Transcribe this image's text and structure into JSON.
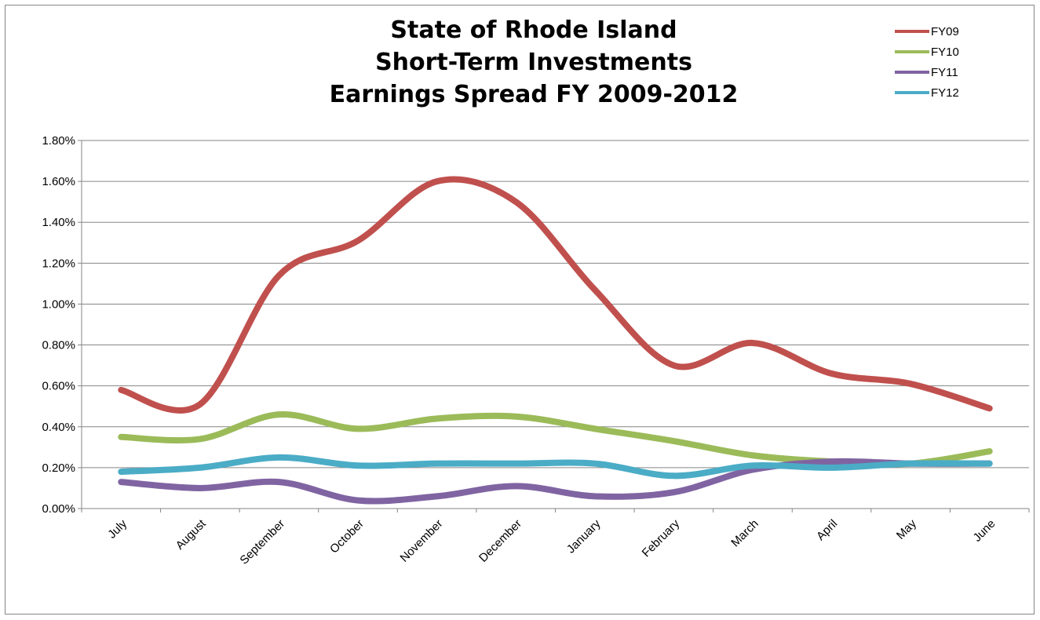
{
  "chart_data": {
    "type": "line",
    "title_lines": [
      "State of Rhode Island",
      "Short-Term Investments",
      "Earnings Spread FY 2009-2012"
    ],
    "categories": [
      "July",
      "August",
      "September",
      "October",
      "November",
      "December",
      "January",
      "February",
      "March",
      "April",
      "May",
      "June"
    ],
    "y_ticks": [
      "0.00%",
      "0.20%",
      "0.40%",
      "0.60%",
      "0.80%",
      "1.00%",
      "1.20%",
      "1.40%",
      "1.60%",
      "1.80%"
    ],
    "ylim": [
      0,
      1.8
    ],
    "y_unit": "%",
    "grid": true,
    "legend": "top-right",
    "smooth": true,
    "series": [
      {
        "name": "FY09",
        "color": "#C0504D",
        "values": [
          0.58,
          0.51,
          1.14,
          1.31,
          1.6,
          1.5,
          1.07,
          0.7,
          0.81,
          0.66,
          0.61,
          0.49
        ]
      },
      {
        "name": "FY10",
        "color": "#9BBB59",
        "values": [
          0.35,
          0.34,
          0.46,
          0.39,
          0.44,
          0.45,
          0.39,
          0.33,
          0.26,
          0.23,
          0.22,
          0.28
        ]
      },
      {
        "name": "FY11",
        "color": "#8064A2",
        "values": [
          0.13,
          0.1,
          0.13,
          0.04,
          0.06,
          0.11,
          0.06,
          0.08,
          0.19,
          0.23,
          0.22,
          0.22
        ]
      },
      {
        "name": "FY12",
        "color": "#4BACC6",
        "values": [
          0.18,
          0.2,
          0.25,
          0.21,
          0.22,
          0.22,
          0.22,
          0.16,
          0.21,
          0.2,
          0.22,
          0.22
        ]
      }
    ]
  }
}
